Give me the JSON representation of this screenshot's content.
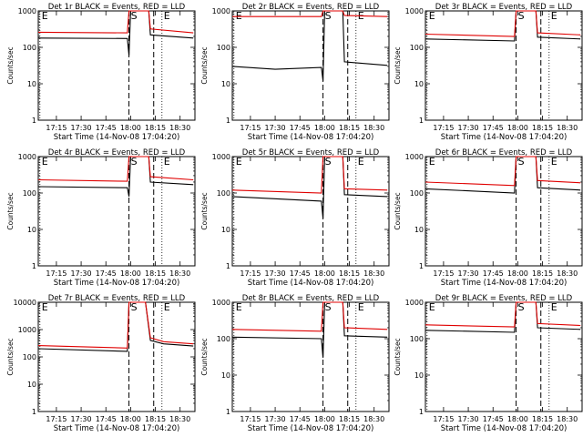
{
  "chart_data": [
    {
      "type": "line",
      "title": "Det 1r BLACK = Events, RED = LLD",
      "ylabel": "Counts/sec",
      "xlabel": "Start Time (14-Nov-08 17:04:20)",
      "yscale": "log",
      "ylim": [
        1,
        1000
      ],
      "xlim": [
        "17:04",
        "18:39"
      ],
      "x_ticks": [
        "17:15",
        "17:30",
        "17:45",
        "18:00",
        "18:15",
        "18:30"
      ],
      "y_ticks": [
        "1",
        "10",
        "100",
        "1000"
      ],
      "markers": [
        {
          "label": "E",
          "time": "17:05",
          "style": "dotted"
        },
        {
          "label": "S",
          "time": "17:59",
          "style": "dashed"
        },
        {
          "label": "",
          "time": "18:14",
          "style": "dashed"
        },
        {
          "label": "E",
          "time": "18:19",
          "style": "dotted"
        }
      ],
      "series": [
        {
          "color": "#000000",
          "points": [
            [
              "17:04",
              180
            ],
            [
              "17:58",
              175
            ],
            [
              "17:59",
              60
            ],
            [
              "18:00",
              1000
            ],
            [
              "18:11",
              1000
            ],
            [
              "18:12",
              220
            ],
            [
              "18:38",
              180
            ]
          ]
        },
        {
          "color": "#e00000",
          "points": [
            [
              "17:04",
              260
            ],
            [
              "17:58",
              250
            ],
            [
              "17:59",
              1000
            ],
            [
              "18:11",
              1000
            ],
            [
              "18:12",
              320
            ],
            [
              "18:38",
              250
            ]
          ]
        }
      ]
    },
    {
      "type": "line",
      "title": "Det 2r BLACK = Events, RED = LLD",
      "ylabel": "Counts/sec",
      "xlabel": "Start Time (14-Nov-08 17:04:20)",
      "yscale": "log",
      "ylim": [
        1,
        1000
      ],
      "xlim": [
        "17:04",
        "18:39"
      ],
      "x_ticks": [
        "17:15",
        "17:30",
        "17:45",
        "18:00",
        "18:15",
        "18:30"
      ],
      "y_ticks": [
        "1",
        "10",
        "100",
        "1000"
      ],
      "markers": [
        {
          "label": "E",
          "time": "17:05",
          "style": "dotted"
        },
        {
          "label": "S",
          "time": "17:59",
          "style": "dashed"
        },
        {
          "label": "",
          "time": "18:14",
          "style": "dashed"
        },
        {
          "label": "E",
          "time": "18:19",
          "style": "dotted"
        }
      ],
      "series": [
        {
          "color": "#000000",
          "points": [
            [
              "17:04",
              30
            ],
            [
              "17:30",
              25
            ],
            [
              "17:58",
              28
            ],
            [
              "17:59",
              12
            ],
            [
              "18:00",
              1000
            ],
            [
              "18:11",
              1000
            ],
            [
              "18:12",
              40
            ],
            [
              "18:38",
              32
            ]
          ]
        },
        {
          "color": "#e00000",
          "points": [
            [
              "17:04",
              700
            ],
            [
              "17:58",
              700
            ],
            [
              "17:59",
              1000
            ],
            [
              "18:11",
              1000
            ],
            [
              "18:12",
              750
            ],
            [
              "18:38",
              700
            ]
          ]
        }
      ]
    },
    {
      "type": "line",
      "title": "Det 3r BLACK = Events, RED = LLD",
      "ylabel": "Counts/sec",
      "xlabel": "Start Time (14-Nov-08 17:04:20)",
      "yscale": "log",
      "ylim": [
        1,
        1000
      ],
      "xlim": [
        "17:04",
        "18:39"
      ],
      "x_ticks": [
        "17:15",
        "17:30",
        "17:45",
        "18:00",
        "18:15",
        "18:30"
      ],
      "y_ticks": [
        "1",
        "10",
        "100",
        "1000"
      ],
      "markers": [
        {
          "label": "E",
          "time": "17:05",
          "style": "dotted"
        },
        {
          "label": "S",
          "time": "17:59",
          "style": "dashed"
        },
        {
          "label": "",
          "time": "18:14",
          "style": "dashed"
        },
        {
          "label": "E",
          "time": "18:19",
          "style": "dotted"
        }
      ],
      "series": [
        {
          "color": "#000000",
          "points": [
            [
              "17:04",
              170
            ],
            [
              "17:58",
              150
            ],
            [
              "17:59",
              1000
            ],
            [
              "18:11",
              1000
            ],
            [
              "18:12",
              190
            ],
            [
              "18:38",
              170
            ]
          ]
        },
        {
          "color": "#e00000",
          "points": [
            [
              "17:04",
              230
            ],
            [
              "17:58",
              200
            ],
            [
              "17:59",
              1000
            ],
            [
              "18:11",
              1000
            ],
            [
              "18:12",
              250
            ],
            [
              "18:38",
              220
            ]
          ]
        }
      ]
    },
    {
      "type": "line",
      "title": "Det 4r BLACK = Events, RED = LLD",
      "ylabel": "Counts/sec",
      "xlabel": "Start Time (14-Nov-08 17:04:20)",
      "yscale": "log",
      "ylim": [
        1,
        1000
      ],
      "xlim": [
        "17:04",
        "18:39"
      ],
      "x_ticks": [
        "17:15",
        "17:30",
        "17:45",
        "18:00",
        "18:15",
        "18:30"
      ],
      "y_ticks": [
        "1",
        "10",
        "100",
        "1000"
      ],
      "markers": [
        {
          "label": "E",
          "time": "17:05",
          "style": "dotted"
        },
        {
          "label": "S",
          "time": "17:59",
          "style": "dashed"
        },
        {
          "label": "",
          "time": "18:14",
          "style": "dashed"
        },
        {
          "label": "E",
          "time": "18:19",
          "style": "dotted"
        }
      ],
      "series": [
        {
          "color": "#000000",
          "points": [
            [
              "17:04",
              150
            ],
            [
              "17:58",
              140
            ],
            [
              "17:59",
              80
            ],
            [
              "18:00",
              1000
            ],
            [
              "18:11",
              1000
            ],
            [
              "18:12",
              200
            ],
            [
              "18:38",
              170
            ]
          ]
        },
        {
          "color": "#e00000",
          "points": [
            [
              "17:04",
              230
            ],
            [
              "17:58",
              210
            ],
            [
              "17:59",
              1000
            ],
            [
              "18:11",
              1000
            ],
            [
              "18:12",
              280
            ],
            [
              "18:38",
              230
            ]
          ]
        }
      ]
    },
    {
      "type": "line",
      "title": "Det 5r BLACK = Events, RED = LLD",
      "ylabel": "Counts/sec",
      "xlabel": "Start Time (14-Nov-08 17:04:20)",
      "yscale": "log",
      "ylim": [
        1,
        1000
      ],
      "xlim": [
        "17:04",
        "18:39"
      ],
      "x_ticks": [
        "17:15",
        "17:30",
        "17:45",
        "18:00",
        "18:15",
        "18:30"
      ],
      "y_ticks": [
        "1",
        "10",
        "100",
        "1000"
      ],
      "markers": [
        {
          "label": "E",
          "time": "17:05",
          "style": "dotted"
        },
        {
          "label": "S",
          "time": "17:59",
          "style": "dashed"
        },
        {
          "label": "",
          "time": "18:14",
          "style": "dashed"
        },
        {
          "label": "E",
          "time": "18:19",
          "style": "dotted"
        }
      ],
      "series": [
        {
          "color": "#000000",
          "points": [
            [
              "17:04",
              80
            ],
            [
              "17:58",
              60
            ],
            [
              "17:59",
              20
            ],
            [
              "18:00",
              1000
            ],
            [
              "18:11",
              1000
            ],
            [
              "18:12",
              90
            ],
            [
              "18:38",
              80
            ]
          ]
        },
        {
          "color": "#e00000",
          "points": [
            [
              "17:04",
              120
            ],
            [
              "17:58",
              100
            ],
            [
              "17:59",
              1000
            ],
            [
              "18:11",
              1000
            ],
            [
              "18:12",
              130
            ],
            [
              "18:38",
              120
            ]
          ]
        }
      ]
    },
    {
      "type": "line",
      "title": "Det 6r BLACK = Events, RED = LLD",
      "ylabel": "Counts/sec",
      "xlabel": "Start Time (14-Nov-08 17:04:20)",
      "yscale": "log",
      "ylim": [
        1,
        1000
      ],
      "xlim": [
        "17:04",
        "18:39"
      ],
      "x_ticks": [
        "17:15",
        "17:30",
        "17:45",
        "18:00",
        "18:15",
        "18:30"
      ],
      "y_ticks": [
        "1",
        "10",
        "100",
        "1000"
      ],
      "markers": [
        {
          "label": "E",
          "time": "17:05",
          "style": "dotted"
        },
        {
          "label": "S",
          "time": "17:59",
          "style": "dashed"
        },
        {
          "label": "",
          "time": "18:14",
          "style": "dashed"
        },
        {
          "label": "E",
          "time": "18:19",
          "style": "dotted"
        }
      ],
      "series": [
        {
          "color": "#000000",
          "points": [
            [
              "17:04",
              130
            ],
            [
              "17:58",
              100
            ],
            [
              "17:59",
              1000
            ],
            [
              "18:11",
              1000
            ],
            [
              "18:12",
              140
            ],
            [
              "18:38",
              120
            ]
          ]
        },
        {
          "color": "#e00000",
          "points": [
            [
              "17:04",
              200
            ],
            [
              "17:58",
              160
            ],
            [
              "17:59",
              1000
            ],
            [
              "18:11",
              1000
            ],
            [
              "18:12",
              220
            ],
            [
              "18:38",
              190
            ]
          ]
        }
      ]
    },
    {
      "type": "line",
      "title": "Det 7r BLACK = Events, RED = LLD",
      "ylabel": "Counts/sec",
      "xlabel": "Start Time (14-Nov-08 17:04:20)",
      "yscale": "log",
      "ylim": [
        1,
        10000
      ],
      "xlim": [
        "17:04",
        "18:39"
      ],
      "x_ticks": [
        "17:15",
        "17:30",
        "17:45",
        "18:00",
        "18:15",
        "18:30"
      ],
      "y_ticks": [
        "1",
        "10",
        "100",
        "1000",
        "10000"
      ],
      "markers": [
        {
          "label": "E",
          "time": "17:05",
          "style": "dotted"
        },
        {
          "label": "S",
          "time": "17:59",
          "style": "dashed"
        },
        {
          "label": "",
          "time": "18:14",
          "style": "dashed"
        },
        {
          "label": "E",
          "time": "18:19",
          "style": "dotted"
        }
      ],
      "series": [
        {
          "color": "#000000",
          "points": [
            [
              "17:04",
              200
            ],
            [
              "17:58",
              160
            ],
            [
              "17:59",
              10000
            ],
            [
              "18:09",
              10000
            ],
            [
              "18:12",
              400
            ],
            [
              "18:20",
              300
            ],
            [
              "18:38",
              250
            ]
          ]
        },
        {
          "color": "#e00000",
          "points": [
            [
              "17:04",
              260
            ],
            [
              "17:58",
              210
            ],
            [
              "17:59",
              10000
            ],
            [
              "18:09",
              10000
            ],
            [
              "18:12",
              500
            ],
            [
              "18:20",
              360
            ],
            [
              "18:38",
              300
            ]
          ]
        }
      ]
    },
    {
      "type": "line",
      "title": "Det 8r BLACK = Events, RED = LLD",
      "ylabel": "Counts/sec",
      "xlabel": "Start Time (14-Nov-08 17:04:20)",
      "yscale": "log",
      "ylim": [
        1,
        1000
      ],
      "xlim": [
        "17:04",
        "18:39"
      ],
      "x_ticks": [
        "17:15",
        "17:30",
        "17:45",
        "18:00",
        "18:15",
        "18:30"
      ],
      "y_ticks": [
        "1",
        "10",
        "100",
        "1000"
      ],
      "markers": [
        {
          "label": "E",
          "time": "17:05",
          "style": "dotted"
        },
        {
          "label": "S",
          "time": "17:59",
          "style": "dashed"
        },
        {
          "label": "",
          "time": "18:14",
          "style": "dashed"
        },
        {
          "label": "E",
          "time": "18:19",
          "style": "dotted"
        }
      ],
      "series": [
        {
          "color": "#000000",
          "points": [
            [
              "17:04",
              110
            ],
            [
              "17:58",
              100
            ],
            [
              "17:59",
              30
            ],
            [
              "18:00",
              1000
            ],
            [
              "18:11",
              1000
            ],
            [
              "18:12",
              120
            ],
            [
              "18:38",
              110
            ]
          ]
        },
        {
          "color": "#e00000",
          "points": [
            [
              "17:04",
              180
            ],
            [
              "17:58",
              160
            ],
            [
              "17:59",
              1000
            ],
            [
              "18:11",
              1000
            ],
            [
              "18:12",
              200
            ],
            [
              "18:38",
              180
            ]
          ]
        }
      ]
    },
    {
      "type": "line",
      "title": "Det 9r BLACK = Events, RED = LLD",
      "ylabel": "Counts/sec",
      "xlabel": "Start Time (14-Nov-08 17:04:20)",
      "yscale": "log",
      "ylim": [
        1,
        1000
      ],
      "xlim": [
        "17:04",
        "18:39"
      ],
      "x_ticks": [
        "17:15",
        "17:30",
        "17:45",
        "18:00",
        "18:15",
        "18:30"
      ],
      "y_ticks": [
        "1",
        "10",
        "100",
        "1000"
      ],
      "markers": [
        {
          "label": "E",
          "time": "17:05",
          "style": "dotted"
        },
        {
          "label": "S",
          "time": "17:59",
          "style": "dashed"
        },
        {
          "label": "",
          "time": "18:14",
          "style": "dashed"
        },
        {
          "label": "E",
          "time": "18:19",
          "style": "dotted"
        }
      ],
      "series": [
        {
          "color": "#000000",
          "points": [
            [
              "17:04",
              170
            ],
            [
              "17:58",
              150
            ],
            [
              "17:59",
              1000
            ],
            [
              "18:11",
              1000
            ],
            [
              "18:12",
              200
            ],
            [
              "18:38",
              180
            ]
          ]
        },
        {
          "color": "#e00000",
          "points": [
            [
              "17:04",
              240
            ],
            [
              "17:58",
              210
            ],
            [
              "17:59",
              1000
            ],
            [
              "18:11",
              1000
            ],
            [
              "18:12",
              260
            ],
            [
              "18:38",
              230
            ]
          ]
        }
      ]
    }
  ]
}
